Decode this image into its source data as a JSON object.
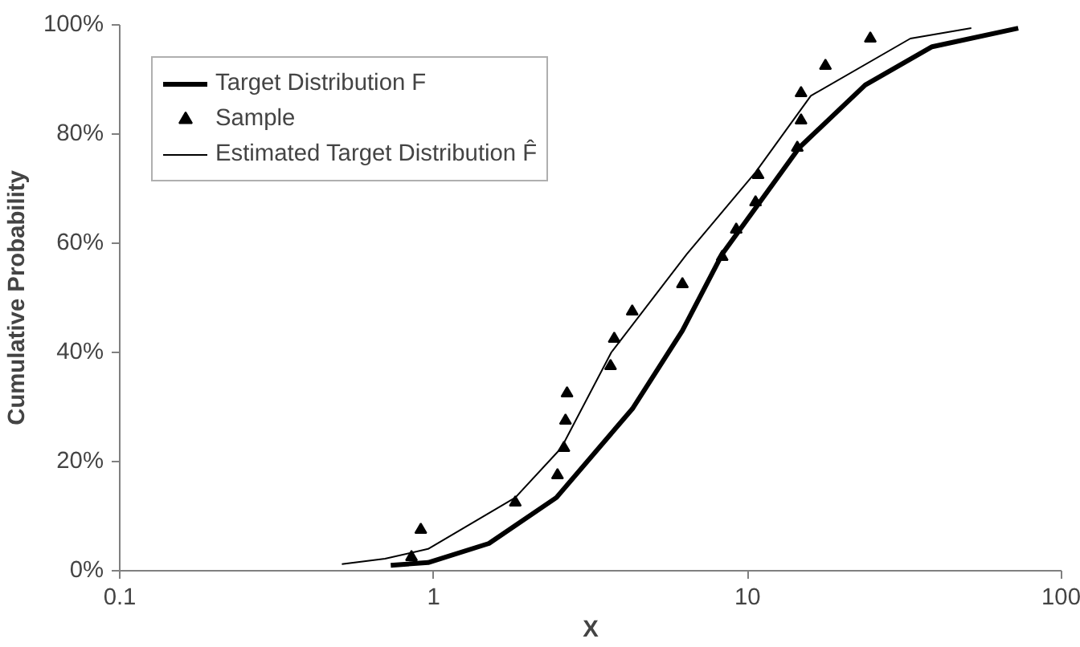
{
  "chart_data": {
    "type": "line",
    "xlabel": "X",
    "ylabel": "Cumulative Probability",
    "log": "x",
    "grid": false,
    "legend": "top left",
    "xlim": [
      0.1,
      100
    ],
    "xticks": [
      0.1,
      1,
      10,
      100
    ],
    "ylim": [
      0,
      100
    ],
    "yticks": [
      {
        "value": 0,
        "label": "0%"
      },
      {
        "value": 20,
        "label": "20%"
      },
      {
        "value": 40,
        "label": "40%"
      },
      {
        "value": 60,
        "label": "60%"
      },
      {
        "value": 80,
        "label": "80%"
      },
      {
        "value": 100,
        "label": "100%"
      }
    ],
    "series": [
      {
        "name": "Target Distribution F",
        "color": "#000000",
        "marker": "none",
        "x": [
          0.73,
          0.96,
          1.5,
          2.46,
          4.3,
          6.2,
          8.3,
          14.6,
          23.7,
          38.7,
          72.8
        ],
        "values": [
          1,
          1.5,
          5,
          13.4,
          29.7,
          44,
          58,
          77.5,
          89,
          96,
          99.4
        ]
      },
      {
        "name": "Sample",
        "type": "scatter",
        "color": "#000000",
        "marker": "triangle",
        "x": [
          0.85,
          0.91,
          1.82,
          2.48,
          2.6,
          2.63,
          2.66,
          3.66,
          3.76,
          4.29,
          6.2,
          8.3,
          9.2,
          10.6,
          10.8,
          14.4,
          14.8,
          14.8,
          17.7,
          24.6
        ],
        "values": [
          2.5,
          7.5,
          12.5,
          17.5,
          22.5,
          27.5,
          32.5,
          37.5,
          42.5,
          47.5,
          52.5,
          57.5,
          62.5,
          67.5,
          72.5,
          77.5,
          82.5,
          87.5,
          92.5,
          97.5
        ]
      },
      {
        "name": "Estimated Target Distribution F̂",
        "color": "#000000",
        "marker": "none",
        "x": [
          0.51,
          0.7,
          0.96,
          1.82,
          2.55,
          3.68,
          6.4,
          10.6,
          15.9,
          33,
          51.6
        ],
        "values": [
          1.2,
          2.2,
          4,
          13.4,
          22.5,
          40,
          58,
          73,
          87,
          97.5,
          99.4
        ]
      }
    ]
  }
}
